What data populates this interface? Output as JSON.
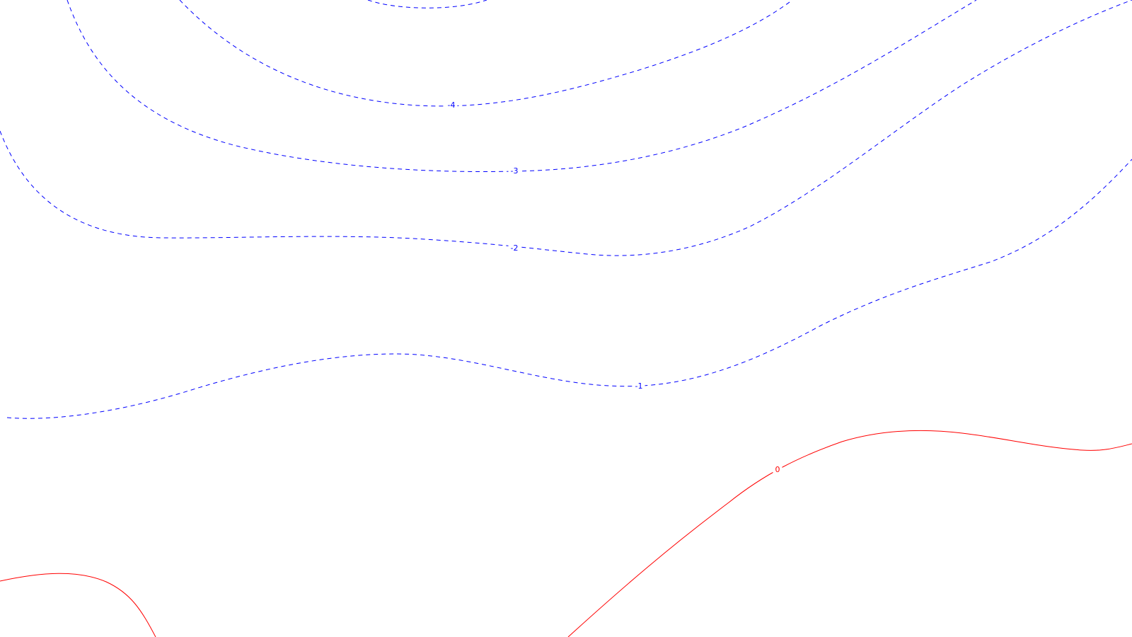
{
  "chart_data": {
    "type": "contour",
    "title": "",
    "xlabel": "",
    "ylabel": "",
    "grid": false,
    "levels": [
      {
        "name": "level-minus-5",
        "value": -5,
        "label": "",
        "color": "#0000ff",
        "style": "dashed"
      },
      {
        "name": "level-minus-4",
        "value": -4,
        "label": "-4",
        "color": "#0000ff",
        "style": "dashed"
      },
      {
        "name": "level-minus-3",
        "value": -3,
        "label": "-3",
        "color": "#0000ff",
        "style": "dashed"
      },
      {
        "name": "level-minus-2",
        "value": -2,
        "label": "-2",
        "color": "#0000ff",
        "style": "dashed"
      },
      {
        "name": "level-minus-1",
        "value": -1,
        "label": "-1",
        "color": "#0000ff",
        "style": "dashed"
      },
      {
        "name": "level-0",
        "value": 0,
        "label": "0",
        "color": "#ff0000",
        "style": "solid"
      }
    ]
  }
}
